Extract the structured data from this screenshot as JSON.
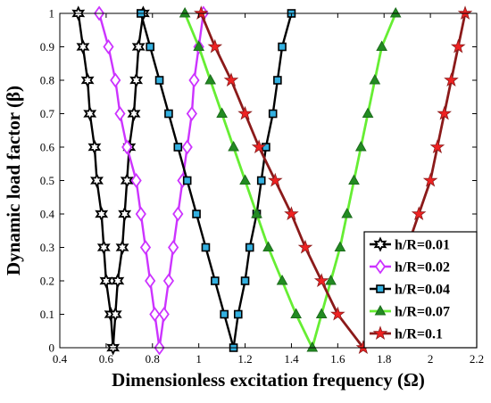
{
  "chart_data": {
    "type": "line",
    "title": "",
    "xlabel": "Dimensionless excitation frequency (Ω)",
    "ylabel": "Dynamic load factor (β)",
    "xlim": [
      0.4,
      2.2
    ],
    "ylim": [
      0,
      1
    ],
    "xticks": [
      "0.4",
      "0.6",
      "0.8",
      "1",
      "1.2",
      "1.4",
      "1.6",
      "1.8",
      "2",
      "2.2"
    ],
    "yticks": [
      "0",
      "0.1",
      "0.2",
      "0.3",
      "0.4",
      "0.5",
      "0.6",
      "0.7",
      "0.8",
      "0.9",
      "1"
    ],
    "grid": false,
    "legend_position": "bottom-right",
    "series": [
      {
        "name": "h/R=0.01",
        "color": "#000000",
        "marker": "hexagram",
        "marker_fill": "#ffffff",
        "left": [
          [
            0.48,
            1.0
          ],
          [
            0.5,
            0.9
          ],
          [
            0.52,
            0.8
          ],
          [
            0.53,
            0.7
          ],
          [
            0.55,
            0.6
          ],
          [
            0.56,
            0.5
          ],
          [
            0.58,
            0.4
          ],
          [
            0.59,
            0.3
          ],
          [
            0.6,
            0.2
          ],
          [
            0.62,
            0.1
          ],
          [
            0.63,
            0.0
          ]
        ],
        "right": [
          [
            0.63,
            0.0
          ],
          [
            0.64,
            0.1
          ],
          [
            0.65,
            0.2
          ],
          [
            0.67,
            0.3
          ],
          [
            0.68,
            0.4
          ],
          [
            0.69,
            0.5
          ],
          [
            0.7,
            0.6
          ],
          [
            0.72,
            0.7
          ],
          [
            0.73,
            0.8
          ],
          [
            0.74,
            0.9
          ],
          [
            0.76,
            1.0
          ]
        ]
      },
      {
        "name": "h/R=0.02",
        "color": "#cc33ff",
        "marker": "diamond",
        "marker_fill": "#ffffff",
        "left": [
          [
            0.57,
            1.0
          ],
          [
            0.61,
            0.9
          ],
          [
            0.64,
            0.8
          ],
          [
            0.66,
            0.7
          ],
          [
            0.69,
            0.6
          ],
          [
            0.73,
            0.5
          ],
          [
            0.75,
            0.4
          ],
          [
            0.77,
            0.3
          ],
          [
            0.79,
            0.2
          ],
          [
            0.81,
            0.1
          ],
          [
            0.83,
            0.0
          ]
        ],
        "right": [
          [
            0.83,
            0.0
          ],
          [
            0.85,
            0.1
          ],
          [
            0.87,
            0.2
          ],
          [
            0.89,
            0.3
          ],
          [
            0.91,
            0.4
          ],
          [
            0.93,
            0.5
          ],
          [
            0.95,
            0.6
          ],
          [
            0.97,
            0.7
          ],
          [
            0.98,
            0.8
          ],
          [
            1.0,
            0.9
          ],
          [
            1.02,
            1.0
          ]
        ]
      },
      {
        "name": "h/R=0.04",
        "color": "#000000",
        "marker": "square",
        "marker_fill": "#33b0e0",
        "left": [
          [
            0.75,
            1.0
          ],
          [
            0.79,
            0.9
          ],
          [
            0.83,
            0.8
          ],
          [
            0.87,
            0.7
          ],
          [
            0.91,
            0.6
          ],
          [
            0.95,
            0.5
          ],
          [
            0.99,
            0.4
          ],
          [
            1.03,
            0.3
          ],
          [
            1.07,
            0.2
          ],
          [
            1.11,
            0.1
          ],
          [
            1.15,
            0.0
          ]
        ],
        "right": [
          [
            1.15,
            0.0
          ],
          [
            1.17,
            0.1
          ],
          [
            1.2,
            0.2
          ],
          [
            1.22,
            0.3
          ],
          [
            1.25,
            0.4
          ],
          [
            1.27,
            0.5
          ],
          [
            1.29,
            0.6
          ],
          [
            1.32,
            0.7
          ],
          [
            1.34,
            0.8
          ],
          [
            1.36,
            0.9
          ],
          [
            1.4,
            1.0
          ]
        ]
      },
      {
        "name": "h/R=0.07",
        "color": "#66ee33",
        "marker": "triangle",
        "marker_fill": "#228b22",
        "left": [
          [
            0.94,
            1.0
          ],
          [
            1.0,
            0.9
          ],
          [
            1.05,
            0.8
          ],
          [
            1.1,
            0.7
          ],
          [
            1.15,
            0.6
          ],
          [
            1.2,
            0.5
          ],
          [
            1.25,
            0.4
          ],
          [
            1.3,
            0.3
          ],
          [
            1.36,
            0.2
          ],
          [
            1.42,
            0.1
          ],
          [
            1.49,
            0.0
          ]
        ],
        "right": [
          [
            1.49,
            0.0
          ],
          [
            1.53,
            0.1
          ],
          [
            1.57,
            0.2
          ],
          [
            1.61,
            0.3
          ],
          [
            1.64,
            0.4
          ],
          [
            1.67,
            0.5
          ],
          [
            1.7,
            0.6
          ],
          [
            1.73,
            0.7
          ],
          [
            1.76,
            0.8
          ],
          [
            1.79,
            0.9
          ],
          [
            1.85,
            1.0
          ]
        ]
      },
      {
        "name": "h/R=0.1",
        "color": "#8b1a1a",
        "marker": "pentagram",
        "marker_fill": "#ee2222",
        "left": [
          [
            1.01,
            1.0
          ],
          [
            1.07,
            0.9
          ],
          [
            1.14,
            0.8
          ],
          [
            1.2,
            0.7
          ],
          [
            1.26,
            0.6
          ],
          [
            1.33,
            0.5
          ],
          [
            1.4,
            0.4
          ],
          [
            1.46,
            0.3
          ],
          [
            1.53,
            0.2
          ],
          [
            1.6,
            0.1
          ],
          [
            1.71,
            0.0
          ]
        ],
        "right": [
          [
            1.71,
            0.0
          ],
          [
            1.79,
            0.1
          ],
          [
            1.85,
            0.2
          ],
          [
            1.9,
            0.3
          ],
          [
            1.95,
            0.4
          ],
          [
            2.0,
            0.5
          ],
          [
            2.03,
            0.6
          ],
          [
            2.06,
            0.7
          ],
          [
            2.09,
            0.8
          ],
          [
            2.12,
            0.9
          ],
          [
            2.15,
            1.0
          ]
        ]
      }
    ]
  }
}
